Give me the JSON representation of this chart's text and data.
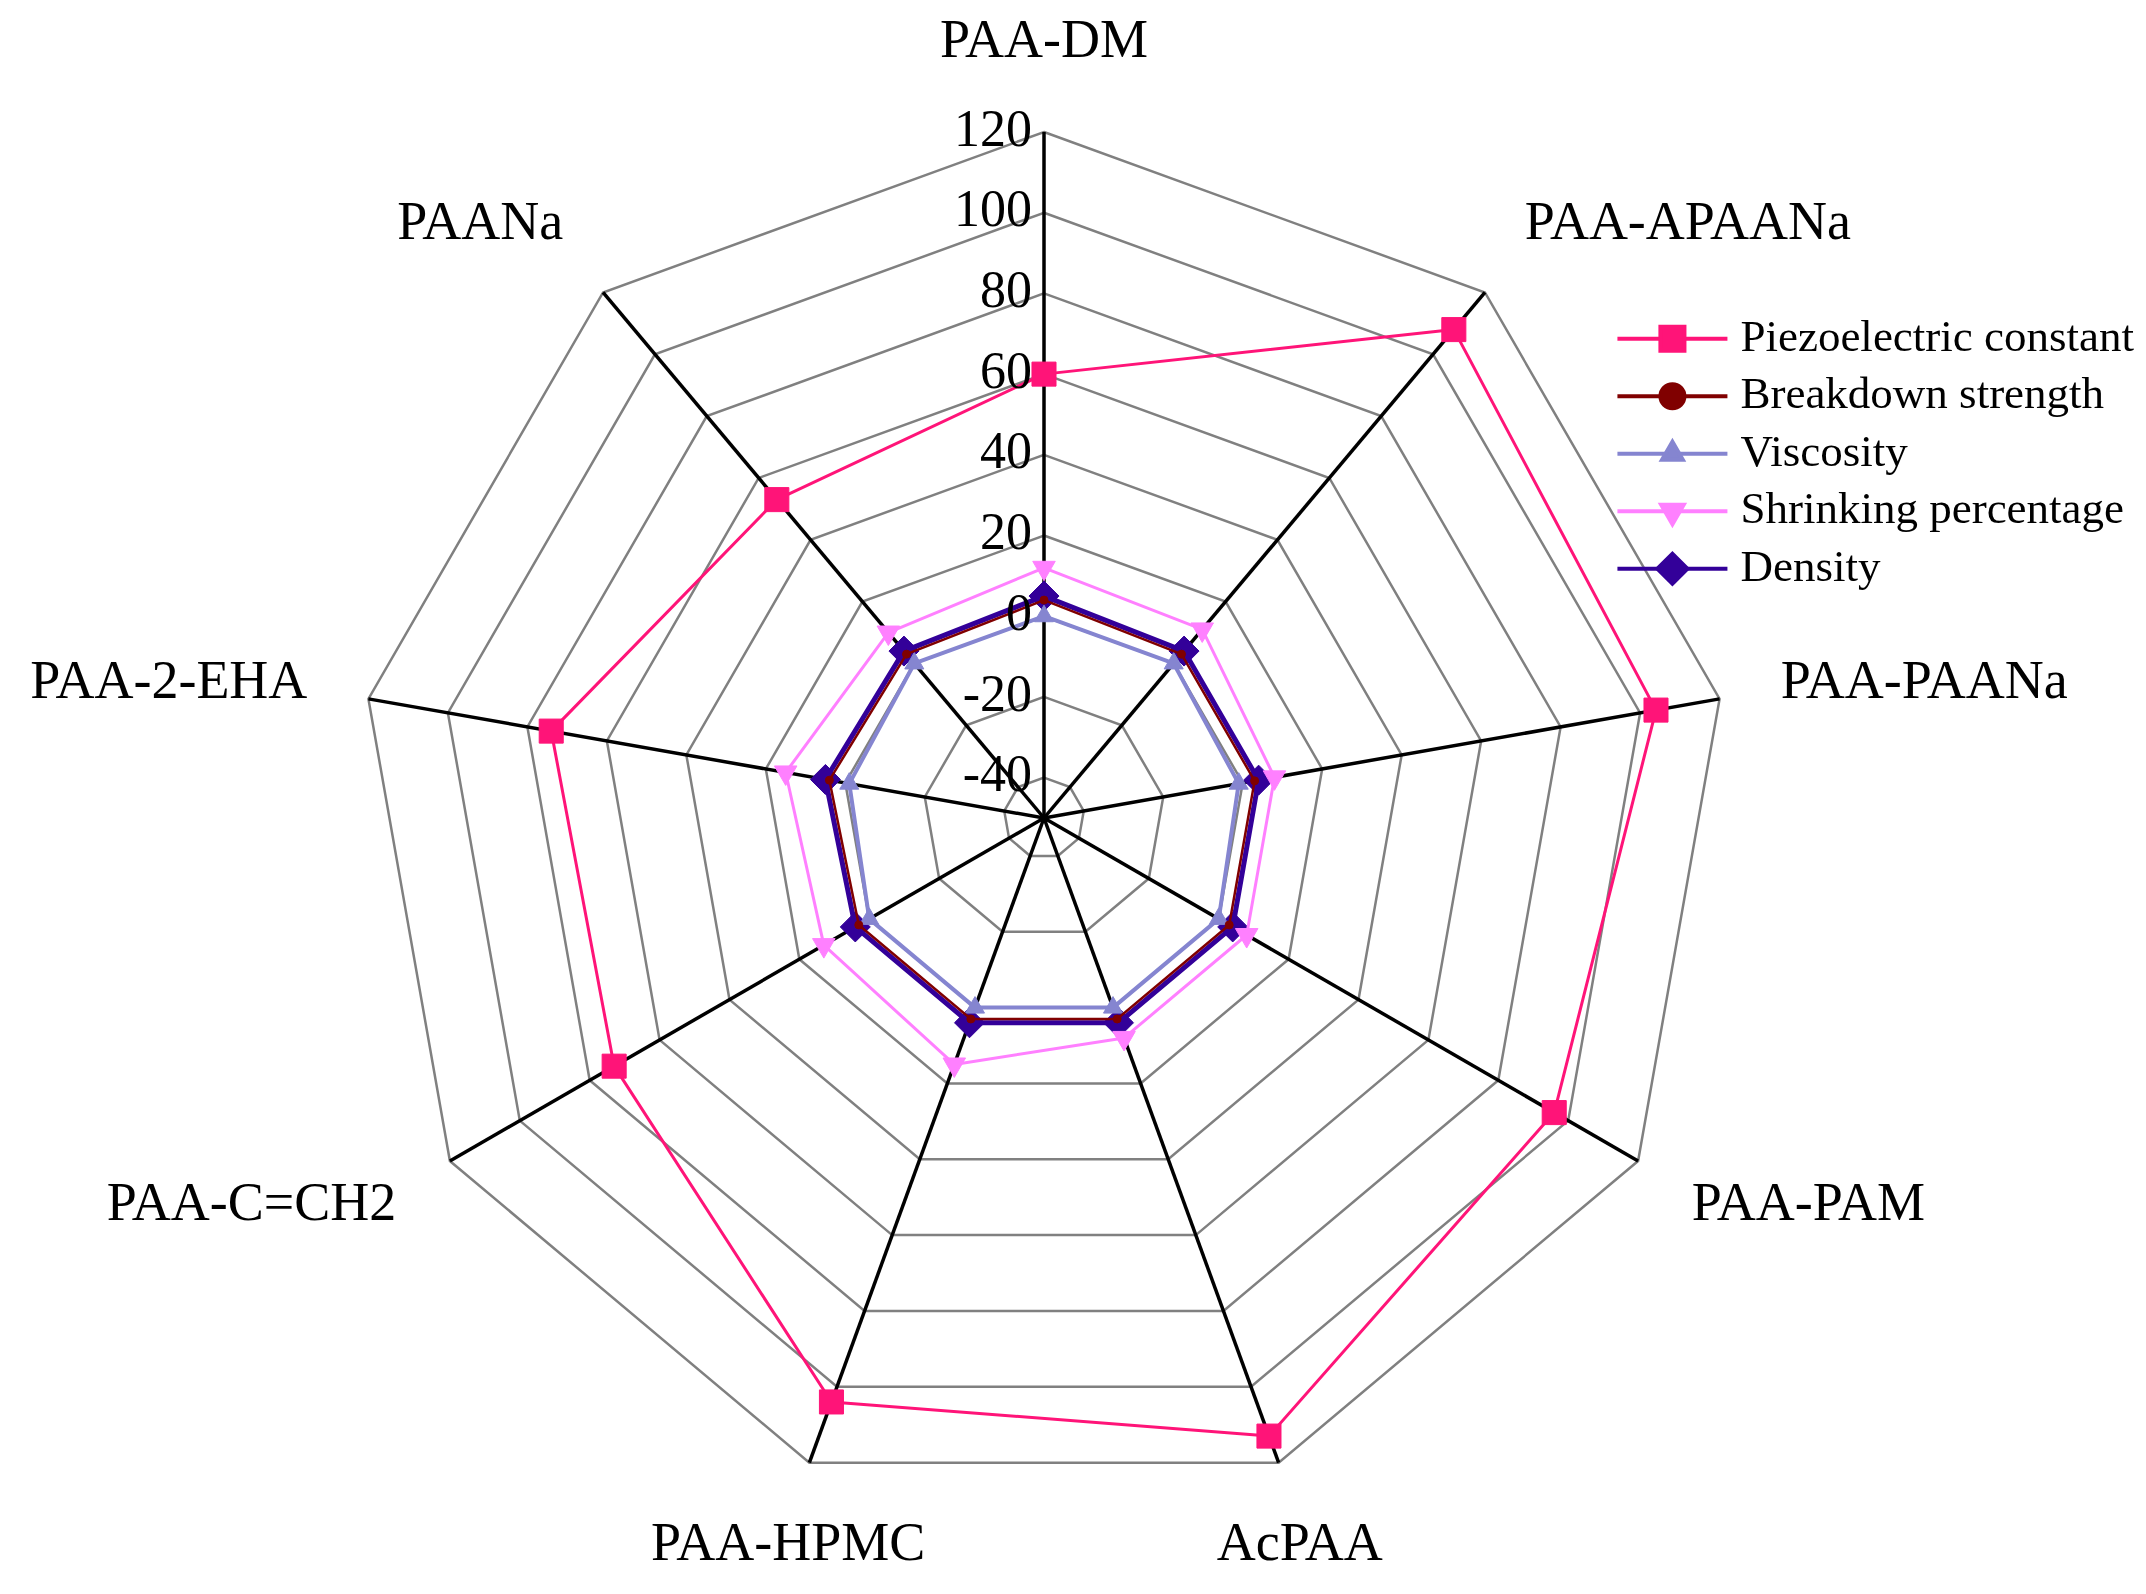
{
  "chart_data": {
    "type": "radar",
    "categories": [
      "PAA-DM",
      "PAA-APAANa",
      "PAA-PAANa",
      "PAA-PAM",
      "AcPAA",
      "PAA-HPMC",
      "PAA-C=CH2",
      "PAA-2-EHA",
      "PAANa"
    ],
    "series": [
      {
        "name": "Piezoelectric constant",
        "color": "#ff1478",
        "marker": "square",
        "values": [
          60,
          108,
          104,
          96,
          113,
          104,
          73,
          74,
          53
        ]
      },
      {
        "name": "Breakdown strength",
        "color": "#800000",
        "marker": "circle",
        "values": [
          4,
          3,
          3,
          3,
          3,
          3,
          3,
          4,
          3
        ]
      },
      {
        "name": "Viscosity",
        "color": "#8585d0",
        "marker": "triangle",
        "values": [
          0,
          0,
          -1,
          0,
          0,
          0,
          0,
          -1,
          0
        ]
      },
      {
        "name": "Shrinking percentage",
        "color": "#ff80ff",
        "marker": "triangle-down",
        "values": [
          12,
          11,
          8,
          8,
          8,
          15,
          13,
          15,
          10
        ]
      },
      {
        "name": "Density",
        "color": "#330099",
        "marker": "diamond",
        "values": [
          5,
          4,
          4,
          4,
          4,
          4,
          4,
          5,
          4
        ]
      }
    ],
    "ylim": [
      -50,
      120
    ],
    "yticks": [
      -40,
      -20,
      0,
      20,
      40,
      60,
      80,
      100,
      120
    ],
    "grid": true,
    "legend": "top right"
  }
}
